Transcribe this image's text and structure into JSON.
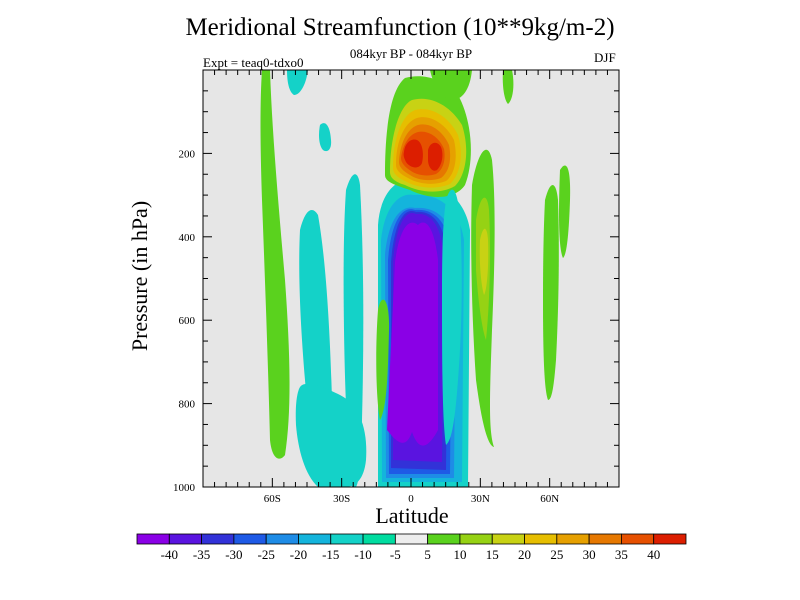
{
  "chart_data": {
    "type": "heatmap",
    "title": "Meridional Streamfunction (10**9kg/m-2)",
    "subtitle": "084kyr BP - 084kyr BP",
    "experiment": "Expt = teaq0-tdxo0",
    "season": "DJF",
    "xlabel": "Latitude",
    "ylabel": "Pressure (in hPa)",
    "xlim": [
      -90,
      90
    ],
    "ylim": [
      1000,
      0
    ],
    "x_ticks": [
      {
        "value": -60,
        "label": "60S"
      },
      {
        "value": -30,
        "label": "30S"
      },
      {
        "value": 0,
        "label": "0"
      },
      {
        "value": 30,
        "label": "30N"
      },
      {
        "value": 60,
        "label": "60N"
      }
    ],
    "y_ticks": [
      {
        "value": 200,
        "label": "200"
      },
      {
        "value": 400,
        "label": "400"
      },
      {
        "value": 600,
        "label": "600"
      },
      {
        "value": 800,
        "label": "800"
      },
      {
        "value": 1000,
        "label": "1000"
      }
    ],
    "colorbar": {
      "labels": [
        "-40",
        "-35",
        "-30",
        "-25",
        "-20",
        "-15",
        "-10",
        "-5",
        "5",
        "10",
        "15",
        "20",
        "25",
        "30",
        "35",
        "40"
      ],
      "colors": [
        "#8a00e6",
        "#5a14e0",
        "#3232d8",
        "#1e5ae6",
        "#1e8ce6",
        "#14b4dc",
        "#14d2c8",
        "#00dca0",
        "#eeeeee",
        "#5ad21e",
        "#96d214",
        "#c8d214",
        "#e6be00",
        "#e6a000",
        "#e67800",
        "#e65000",
        "#dc1e00"
      ]
    },
    "missing_color": "#e6e6e6",
    "features": [
      {
        "kind": "positive cell",
        "lat": [
          -13,
          18
        ],
        "pressure": [
          80,
          300
        ],
        "max_value": 40
      },
      {
        "kind": "negative cell",
        "lat": [
          -12,
          22
        ],
        "pressure": [
          295,
          1000
        ],
        "min_value": -40
      },
      {
        "kind": "positive band",
        "lat": [
          22,
          35
        ],
        "pressure": [
          150,
          890
        ],
        "max_value": 20
      },
      {
        "kind": "positive band",
        "lat": [
          -66,
          -58
        ],
        "pressure": [
          0,
          940
        ],
        "max_value": 10
      },
      {
        "kind": "positive band",
        "lat": [
          60,
          70
        ],
        "pressure": [
          270,
          800
        ],
        "max_value": 10
      },
      {
        "kind": "negative band",
        "lat": [
          -45,
          -35
        ],
        "pressure": [
          240,
          950
        ],
        "min_value": -10
      },
      {
        "kind": "negative band",
        "lat": [
          -25,
          -18
        ],
        "pressure": [
          170,
          1000
        ],
        "min_value": -10
      }
    ]
  }
}
